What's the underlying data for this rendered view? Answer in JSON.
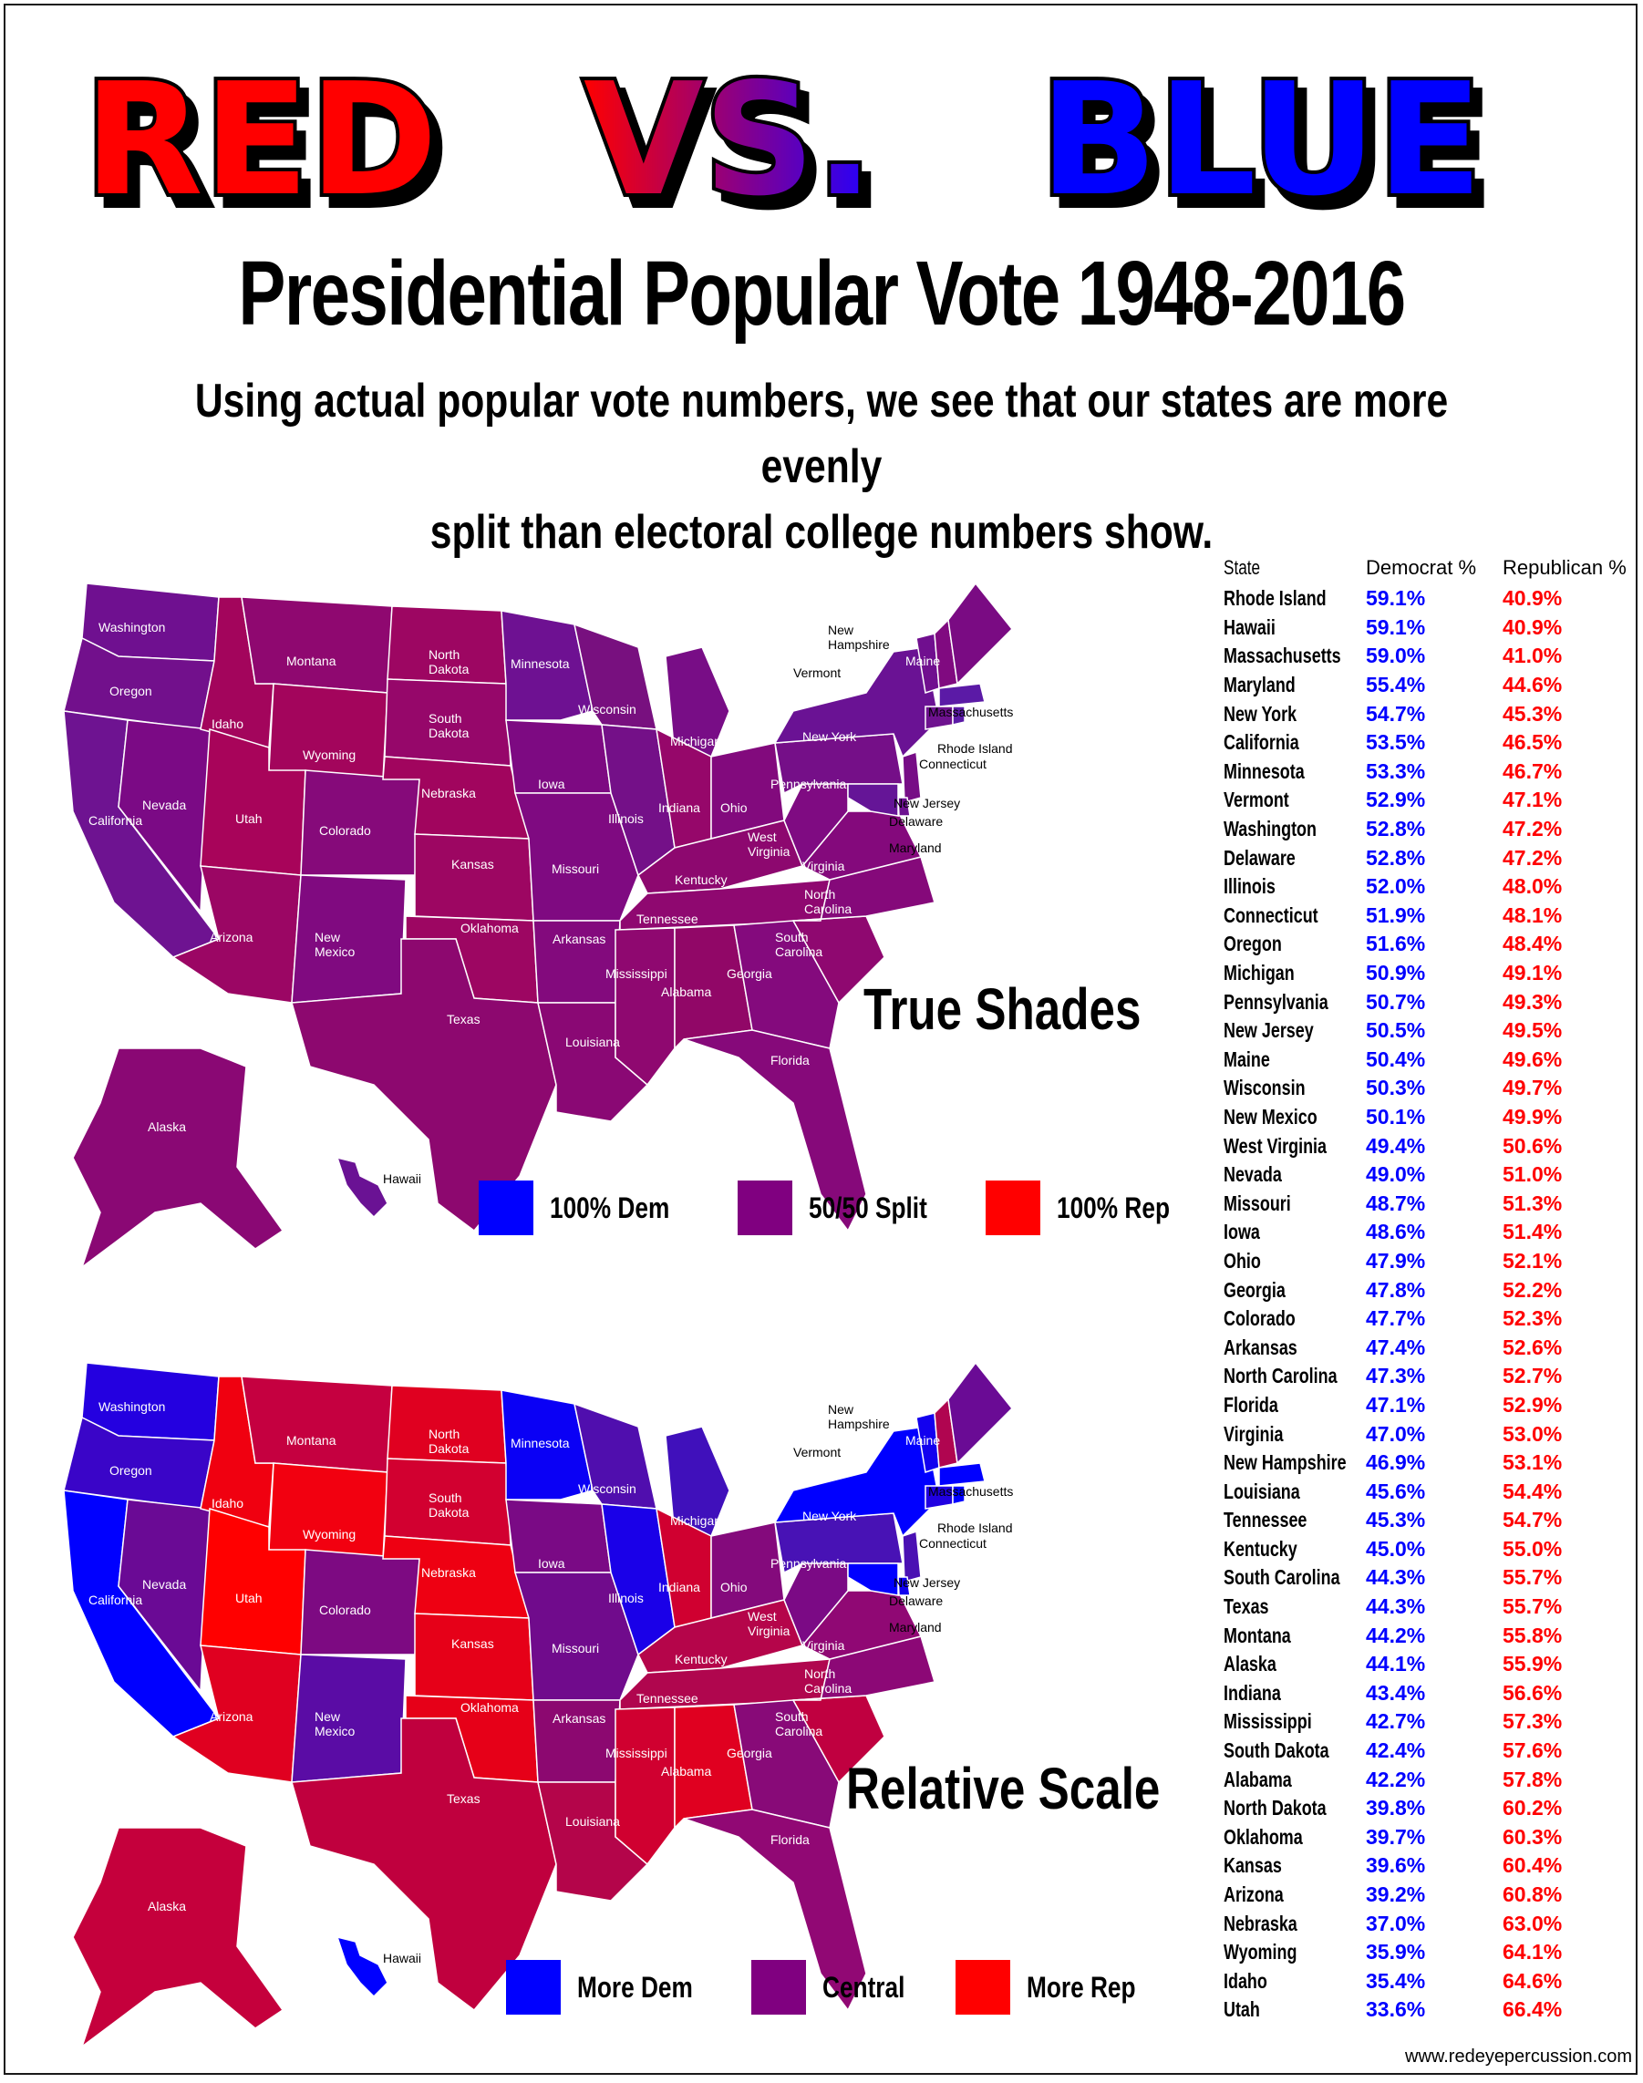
{
  "header": {
    "title_red": "RED",
    "title_vs": "VS.",
    "title_blue": "BLUE",
    "subtitle": "Presidential Popular Vote 1948-2016",
    "intro_line1": "Using actual popular vote numbers, we see that our states are more evenly",
    "intro_line2": "split than electoral college numbers show."
  },
  "colors": {
    "red": "#ff0000",
    "blue": "#0000ff",
    "purple": "#800080",
    "border": "#ffffff"
  },
  "map_top": {
    "label": "True Shades",
    "legend": [
      {
        "label": "100% Dem",
        "color": "#0000ff"
      },
      {
        "label": "50/50 Split",
        "color": "#800080"
      },
      {
        "label": "100% Rep",
        "color": "#ff0000"
      }
    ]
  },
  "map_bottom": {
    "label": "Relative Scale",
    "legend": [
      {
        "label": "More Dem",
        "color": "#0000ff"
      },
      {
        "label": "Central",
        "color": "#800080"
      },
      {
        "label": "More Rep",
        "color": "#ff0000"
      }
    ]
  },
  "map_state_labels": [
    "Washington",
    "Oregon",
    "California",
    "Nevada",
    "Idaho",
    "Montana",
    "Wyoming",
    "Utah",
    "Arizona",
    "Colorado",
    "New Mexico",
    "North Dakota",
    "South Dakota",
    "Nebraska",
    "Kansas",
    "Oklahoma",
    "Texas",
    "Minnesota",
    "Iowa",
    "Missouri",
    "Arkansas",
    "Louisiana",
    "Wisconsin",
    "Illinois",
    "Michigan",
    "Indiana",
    "Ohio",
    "Kentucky",
    "Tennessee",
    "Mississippi",
    "Alabama",
    "Georgia",
    "Florida",
    "South Carolina",
    "North Carolina",
    "Virginia",
    "West Virginia",
    "Pennsylvania",
    "New York",
    "Vermont",
    "New Hampshire",
    "Maine",
    "Massachusetts",
    "Rhode Island",
    "Connecticut",
    "New Jersey",
    "Delaware",
    "Maryland",
    "Alaska",
    "Hawaii"
  ],
  "table": {
    "headers": {
      "state": "State",
      "dem": "Democrat %",
      "rep": "Republican %"
    },
    "rows": [
      {
        "state": "Rhode Island",
        "dem": "59.1%",
        "rep": "40.9%"
      },
      {
        "state": "Hawaii",
        "dem": "59.1%",
        "rep": "40.9%"
      },
      {
        "state": "Massachusetts",
        "dem": "59.0%",
        "rep": "41.0%"
      },
      {
        "state": "Maryland",
        "dem": "55.4%",
        "rep": "44.6%"
      },
      {
        "state": "New York",
        "dem": "54.7%",
        "rep": "45.3%"
      },
      {
        "state": "California",
        "dem": "53.5%",
        "rep": "46.5%"
      },
      {
        "state": "Minnesota",
        "dem": "53.3%",
        "rep": "46.7%"
      },
      {
        "state": "Vermont",
        "dem": "52.9%",
        "rep": "47.1%"
      },
      {
        "state": "Washington",
        "dem": "52.8%",
        "rep": "47.2%"
      },
      {
        "state": "Delaware",
        "dem": "52.8%",
        "rep": "47.2%"
      },
      {
        "state": "Illinois",
        "dem": "52.0%",
        "rep": "48.0%"
      },
      {
        "state": "Connecticut",
        "dem": "51.9%",
        "rep": "48.1%"
      },
      {
        "state": "Oregon",
        "dem": "51.6%",
        "rep": "48.4%"
      },
      {
        "state": "Michigan",
        "dem": "50.9%",
        "rep": "49.1%"
      },
      {
        "state": "Pennsylvania",
        "dem": "50.7%",
        "rep": "49.3%"
      },
      {
        "state": "New Jersey",
        "dem": "50.5%",
        "rep": "49.5%"
      },
      {
        "state": "Maine",
        "dem": "50.4%",
        "rep": "49.6%"
      },
      {
        "state": "Wisconsin",
        "dem": "50.3%",
        "rep": "49.7%"
      },
      {
        "state": "New Mexico",
        "dem": "50.1%",
        "rep": "49.9%"
      },
      {
        "state": "West Virginia",
        "dem": "49.4%",
        "rep": "50.6%"
      },
      {
        "state": "Nevada",
        "dem": "49.0%",
        "rep": "51.0%"
      },
      {
        "state": "Missouri",
        "dem": "48.7%",
        "rep": "51.3%"
      },
      {
        "state": "Iowa",
        "dem": "48.6%",
        "rep": "51.4%"
      },
      {
        "state": "Ohio",
        "dem": "47.9%",
        "rep": "52.1%"
      },
      {
        "state": "Georgia",
        "dem": "47.8%",
        "rep": "52.2%"
      },
      {
        "state": "Colorado",
        "dem": "47.7%",
        "rep": "52.3%"
      },
      {
        "state": "Arkansas",
        "dem": "47.4%",
        "rep": "52.6%"
      },
      {
        "state": "North Carolina",
        "dem": "47.3%",
        "rep": "52.7%"
      },
      {
        "state": "Florida",
        "dem": "47.1%",
        "rep": "52.9%"
      },
      {
        "state": "Virginia",
        "dem": "47.0%",
        "rep": "53.0%"
      },
      {
        "state": "New Hampshire",
        "dem": "46.9%",
        "rep": "53.1%"
      },
      {
        "state": "Louisiana",
        "dem": "45.6%",
        "rep": "54.4%"
      },
      {
        "state": "Tennessee",
        "dem": "45.3%",
        "rep": "54.7%"
      },
      {
        "state": "Kentucky",
        "dem": "45.0%",
        "rep": "55.0%"
      },
      {
        "state": "South Carolina",
        "dem": "44.3%",
        "rep": "55.7%"
      },
      {
        "state": "Texas",
        "dem": "44.3%",
        "rep": "55.7%"
      },
      {
        "state": "Montana",
        "dem": "44.2%",
        "rep": "55.8%"
      },
      {
        "state": "Alaska",
        "dem": "44.1%",
        "rep": "55.9%"
      },
      {
        "state": "Indiana",
        "dem": "43.4%",
        "rep": "56.6%"
      },
      {
        "state": "Mississippi",
        "dem": "42.7%",
        "rep": "57.3%"
      },
      {
        "state": "South Dakota",
        "dem": "42.4%",
        "rep": "57.6%"
      },
      {
        "state": "Alabama",
        "dem": "42.2%",
        "rep": "57.8%"
      },
      {
        "state": "North Dakota",
        "dem": "39.8%",
        "rep": "60.2%"
      },
      {
        "state": "Oklahoma",
        "dem": "39.7%",
        "rep": "60.3%"
      },
      {
        "state": "Kansas",
        "dem": "39.6%",
        "rep": "60.4%"
      },
      {
        "state": "Arizona",
        "dem": "39.2%",
        "rep": "60.8%"
      },
      {
        "state": "Nebraska",
        "dem": "37.0%",
        "rep": "63.0%"
      },
      {
        "state": "Wyoming",
        "dem": "35.9%",
        "rep": "64.1%"
      },
      {
        "state": "Idaho",
        "dem": "35.4%",
        "rep": "64.6%"
      },
      {
        "state": "Utah",
        "dem": "33.6%",
        "rep": "66.4%"
      }
    ]
  },
  "credit": "www.redeyepercussion.com"
}
